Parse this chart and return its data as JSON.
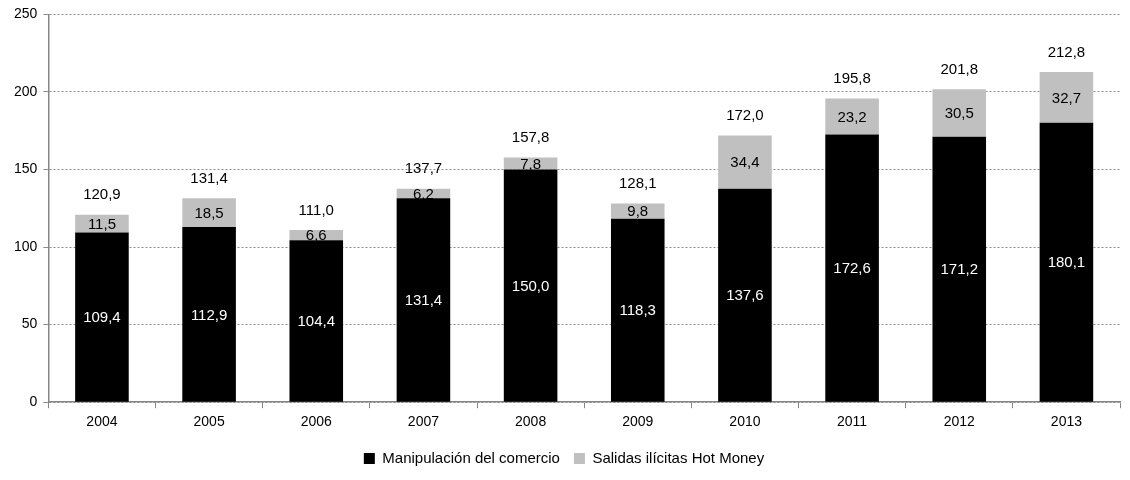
{
  "chart_data": {
    "type": "bar",
    "stacked": true,
    "categories": [
      "2004",
      "2005",
      "2006",
      "2007",
      "2008",
      "2009",
      "2010",
      "2011",
      "2012",
      "2013"
    ],
    "series": [
      {
        "name": "Manipulación del comercio",
        "color": "#000000",
        "values": [
          109.4,
          112.9,
          104.4,
          131.4,
          150.0,
          118.3,
          137.6,
          172.6,
          171.2,
          180.1
        ],
        "value_labels": [
          "109,4",
          "112,9",
          "104,4",
          "131,4",
          "150,0",
          "118,3",
          "137,6",
          "172,6",
          "171,2",
          "180,1"
        ]
      },
      {
        "name": "Salidas ilícitas Hot Money",
        "color": "#c0c0c0",
        "values": [
          11.5,
          18.5,
          6.6,
          6.2,
          7.8,
          9.8,
          34.4,
          23.2,
          30.5,
          32.7
        ],
        "value_labels": [
          "11,5",
          "18,5",
          "6,6",
          "6,2",
          "7,8",
          "9,8",
          "34,4",
          "23,2",
          "30,5",
          "32,7"
        ]
      }
    ],
    "totals": [
      "120,9",
      "131,4",
      "111,0",
      "137,7",
      "157,8",
      "128,1",
      "172,0",
      "195,8",
      "201,8",
      "212,8"
    ],
    "ylim": [
      0,
      250
    ],
    "yticks": [
      0,
      50,
      100,
      150,
      200,
      250
    ],
    "grid": "y",
    "legend": "bottom"
  }
}
